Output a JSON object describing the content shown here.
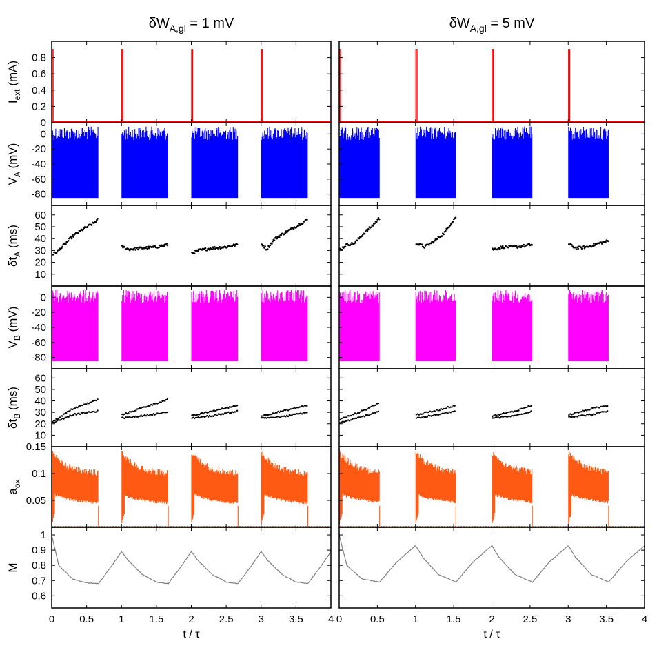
{
  "chart_data": {
    "type": "line",
    "columns": [
      {
        "title_main": "δW",
        "title_sub": "A,gl",
        "title_rest": " = 1 mV"
      },
      {
        "title_main": "δW",
        "title_sub": "A,gl",
        "title_rest": " = 5 mV"
      }
    ],
    "xlabel": "t / τ",
    "xlim": [
      0,
      4
    ],
    "xticks": [
      [
        0,
        "0"
      ],
      [
        0.5,
        "0.5"
      ],
      [
        1,
        "1"
      ],
      [
        1.5,
        "1.5"
      ],
      [
        2,
        "2"
      ],
      [
        2.5,
        "2.5"
      ],
      [
        3,
        "3"
      ],
      [
        3.5,
        "3.5"
      ],
      [
        4,
        "4"
      ]
    ],
    "pulse_times": [
      0,
      1,
      2,
      3,
      4
    ],
    "burst_end": [
      [
        0.67,
        1.67,
        2.67,
        3.67,
        4.05
      ],
      [
        0.53,
        1.53,
        2.53,
        3.53,
        4.05
      ]
    ],
    "panels": [
      {
        "key": "iext",
        "label_main": "I",
        "label_sub": "ext",
        "label_rest": " (mA)",
        "color": "#ff0000",
        "ylim": [
          0,
          1.0
        ],
        "yticks": [
          [
            0,
            "0"
          ],
          [
            0.2,
            "0.2"
          ],
          [
            0.4,
            "0.4"
          ],
          [
            0.6,
            "0.6"
          ],
          [
            0.8,
            "0.8"
          ]
        ],
        "pulse_amplitude": 0.9,
        "pulse_width": 0.02
      },
      {
        "key": "va",
        "label_main": "V",
        "label_sub": "A",
        "label_rest": " (mV)",
        "color": "#0000ff",
        "ylim": [
          -95,
          15
        ],
        "yticks": [
          [
            0,
            "0"
          ],
          [
            -20,
            "-20"
          ],
          [
            -40,
            "-40"
          ],
          [
            -60,
            "-60"
          ],
          [
            -80,
            "-80"
          ]
        ],
        "spike_range": [
          -85,
          10
        ]
      },
      {
        "key": "dta",
        "label_main": "δt",
        "label_sub": "A",
        "label_rest": "  (ms)",
        "color": "#000000",
        "ylim": [
          0,
          68
        ],
        "yticks": [
          [
            10,
            "10"
          ],
          [
            20,
            "20"
          ],
          [
            30,
            "30"
          ],
          [
            40,
            "40"
          ],
          [
            50,
            "50"
          ],
          [
            60,
            "60"
          ]
        ],
        "series": [
          [
            {
              "start": 0.0,
              "end": 0.67,
              "points": [
                [
                  0.02,
                  27
                ],
                [
                  0.1,
                  30
                ],
                [
                  0.2,
                  36
                ],
                [
                  0.3,
                  42
                ],
                [
                  0.45,
                  48
                ],
                [
                  0.6,
                  53
                ],
                [
                  0.66,
                  56
                ]
              ]
            },
            {
              "start": 1.0,
              "end": 1.67,
              "points": [
                [
                  1.02,
                  33
                ],
                [
                  1.1,
                  31
                ],
                [
                  1.3,
                  32
                ],
                [
                  1.5,
                  33
                ],
                [
                  1.66,
                  35
                ]
              ]
            },
            {
              "start": 2.0,
              "end": 2.67,
              "points": [
                [
                  2.02,
                  28
                ],
                [
                  2.1,
                  30
                ],
                [
                  2.3,
                  32
                ],
                [
                  2.5,
                  33
                ],
                [
                  2.66,
                  35
                ]
              ]
            },
            {
              "start": 3.0,
              "end": 3.67,
              "points": [
                [
                  3.02,
                  35
                ],
                [
                  3.08,
                  31
                ],
                [
                  3.2,
                  40
                ],
                [
                  3.4,
                  47
                ],
                [
                  3.55,
                  52
                ],
                [
                  3.66,
                  56
                ]
              ]
            }
          ],
          [
            {
              "start": 0.0,
              "end": 0.53,
              "points": [
                [
                  0.02,
                  31
                ],
                [
                  0.1,
                  35
                ],
                [
                  0.2,
                  36
                ],
                [
                  0.3,
                  43
                ],
                [
                  0.45,
                  52
                ],
                [
                  0.52,
                  57
                ]
              ]
            },
            {
              "start": 1.0,
              "end": 1.53,
              "points": [
                [
                  1.02,
                  36
                ],
                [
                  1.12,
                  33
                ],
                [
                  1.25,
                  38
                ],
                [
                  1.38,
                  45
                ],
                [
                  1.52,
                  58
                ]
              ]
            },
            {
              "start": 2.0,
              "end": 2.53,
              "points": [
                [
                  2.02,
                  31
                ],
                [
                  2.15,
                  33
                ],
                [
                  2.3,
                  33
                ],
                [
                  2.45,
                  34
                ],
                [
                  2.52,
                  35
                ]
              ]
            },
            {
              "start": 3.0,
              "end": 3.53,
              "points": [
                [
                  3.02,
                  35
                ],
                [
                  3.1,
                  32
                ],
                [
                  3.25,
                  33
                ],
                [
                  3.4,
                  36
                ],
                [
                  3.52,
                  38
                ]
              ]
            }
          ]
        ]
      },
      {
        "key": "vb",
        "label_main": "V",
        "label_sub": "B",
        "label_rest": "  (mV)",
        "color": "#ff00ff",
        "ylim": [
          -95,
          15
        ],
        "yticks": [
          [
            0,
            "0"
          ],
          [
            -20,
            "-20"
          ],
          [
            -40,
            "-40"
          ],
          [
            -60,
            "-60"
          ],
          [
            -80,
            "-80"
          ]
        ],
        "spike_range": [
          -85,
          10
        ]
      },
      {
        "key": "dtb",
        "label_main": "δt",
        "label_sub": "B",
        "label_rest": "  (ms)",
        "color": "#000000",
        "ylim": [
          0,
          68
        ],
        "yticks": [
          [
            10,
            "10"
          ],
          [
            20,
            "20"
          ],
          [
            30,
            "30"
          ],
          [
            40,
            "40"
          ],
          [
            50,
            "50"
          ],
          [
            60,
            "60"
          ]
        ],
        "series": [
          [
            {
              "start": 0.0,
              "end": 0.67,
              "upper": [
                [
                  0.02,
                  22
                ],
                [
                  0.3,
                  33
                ],
                [
                  0.66,
                  41
                ]
              ],
              "lower": [
                [
                  0.02,
                  21
                ],
                [
                  0.3,
                  28
                ],
                [
                  0.66,
                  31
                ]
              ]
            },
            {
              "start": 1.0,
              "end": 1.67,
              "upper": [
                [
                  1.02,
                  28
                ],
                [
                  1.3,
                  34
                ],
                [
                  1.66,
                  41
                ]
              ],
              "lower": [
                [
                  1.02,
                  25
                ],
                [
                  1.3,
                  27
                ],
                [
                  1.66,
                  30
                ]
              ]
            },
            {
              "start": 2.0,
              "end": 2.67,
              "upper": [
                [
                  2.02,
                  27
                ],
                [
                  2.3,
                  31
                ],
                [
                  2.66,
                  36
                ]
              ],
              "lower": [
                [
                  2.02,
                  25
                ],
                [
                  2.3,
                  27
                ],
                [
                  2.66,
                  31
                ]
              ]
            },
            {
              "start": 3.0,
              "end": 3.67,
              "upper": [
                [
                  3.02,
                  27
                ],
                [
                  3.3,
                  31
                ],
                [
                  3.66,
                  36
                ]
              ],
              "lower": [
                [
                  3.02,
                  25
                ],
                [
                  3.3,
                  26
                ],
                [
                  3.66,
                  30
                ]
              ]
            }
          ],
          [
            {
              "start": 0.0,
              "end": 0.53,
              "upper": [
                [
                  0.02,
                  24
                ],
                [
                  0.3,
                  31
                ],
                [
                  0.52,
                  38
                ]
              ],
              "lower": [
                [
                  0.02,
                  21
                ],
                [
                  0.3,
                  26
                ],
                [
                  0.52,
                  31
                ]
              ]
            },
            {
              "start": 1.0,
              "end": 1.53,
              "upper": [
                [
                  1.02,
                  28
                ],
                [
                  1.3,
                  32
                ],
                [
                  1.52,
                  36
                ]
              ],
              "lower": [
                [
                  1.02,
                  25
                ],
                [
                  1.3,
                  28
                ],
                [
                  1.52,
                  31
                ]
              ]
            },
            {
              "start": 2.0,
              "end": 2.53,
              "upper": [
                [
                  2.02,
                  27
                ],
                [
                  2.3,
                  31
                ],
                [
                  2.52,
                  36
                ]
              ],
              "lower": [
                [
                  2.02,
                  25
                ],
                [
                  2.3,
                  27
                ],
                [
                  2.52,
                  31
                ]
              ]
            },
            {
              "start": 3.0,
              "end": 3.53,
              "upper": [
                [
                  3.02,
                  28
                ],
                [
                  3.3,
                  33
                ],
                [
                  3.52,
                  36
                ]
              ],
              "lower": [
                [
                  3.02,
                  26
                ],
                [
                  3.3,
                  28
                ],
                [
                  3.52,
                  31
                ]
              ]
            }
          ]
        ]
      },
      {
        "key": "aox",
        "label_main": "a",
        "label_sub": "ox",
        "label_rest": "",
        "color": "#ff5a14",
        "ylim": [
          0,
          0.15
        ],
        "yticks": [
          [
            0.05,
            "0.05"
          ],
          [
            0.1,
            "0.1"
          ],
          [
            0.15,
            "0.15"
          ]
        ],
        "envelope": {
          "peak": 0.145,
          "end_upper": 0.105,
          "end_lower": 0.04,
          "baseline": 0.0
        }
      },
      {
        "key": "m",
        "label_main": "M",
        "label_sub": "",
        "label_rest": "",
        "color": "#808080",
        "ylim": [
          0.52,
          1.05
        ],
        "yticks": [
          [
            0.6,
            "0.6"
          ],
          [
            0.7,
            "0.7"
          ],
          [
            0.8,
            "0.8"
          ],
          [
            0.9,
            "0.9"
          ],
          [
            1,
            "1"
          ]
        ],
        "curves": [
          [
            [
              0,
              1.0
            ],
            [
              0.1,
              0.8
            ],
            [
              0.3,
              0.71
            ],
            [
              0.5,
              0.685
            ],
            [
              0.67,
              0.68
            ],
            [
              0.85,
              0.79
            ],
            [
              1.0,
              0.89
            ],
            [
              1.1,
              0.83
            ],
            [
              1.3,
              0.74
            ],
            [
              1.5,
              0.69
            ],
            [
              1.67,
              0.68
            ],
            [
              1.85,
              0.79
            ],
            [
              2.0,
              0.89
            ],
            [
              2.1,
              0.83
            ],
            [
              2.3,
              0.74
            ],
            [
              2.5,
              0.69
            ],
            [
              2.67,
              0.68
            ],
            [
              2.85,
              0.79
            ],
            [
              3.0,
              0.89
            ],
            [
              3.1,
              0.83
            ],
            [
              3.3,
              0.74
            ],
            [
              3.5,
              0.69
            ],
            [
              3.67,
              0.68
            ],
            [
              3.85,
              0.79
            ],
            [
              4.0,
              0.89
            ]
          ],
          [
            [
              0,
              1.0
            ],
            [
              0.1,
              0.8
            ],
            [
              0.3,
              0.71
            ],
            [
              0.53,
              0.69
            ],
            [
              0.75,
              0.82
            ],
            [
              1.0,
              0.93
            ],
            [
              1.1,
              0.85
            ],
            [
              1.3,
              0.74
            ],
            [
              1.53,
              0.69
            ],
            [
              1.75,
              0.82
            ],
            [
              2.0,
              0.93
            ],
            [
              2.1,
              0.85
            ],
            [
              2.3,
              0.74
            ],
            [
              2.53,
              0.69
            ],
            [
              2.75,
              0.82
            ],
            [
              3.0,
              0.93
            ],
            [
              3.1,
              0.85
            ],
            [
              3.3,
              0.74
            ],
            [
              3.53,
              0.69
            ],
            [
              3.75,
              0.82
            ],
            [
              4.0,
              0.93
            ],
            [
              4.05,
              0.92
            ]
          ]
        ]
      }
    ]
  }
}
